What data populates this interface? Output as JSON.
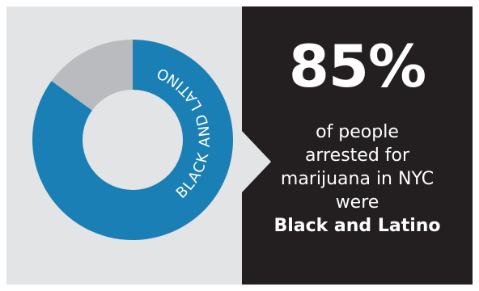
{
  "chart_data": {
    "type": "pie",
    "style": "donut",
    "slices": [
      {
        "label": "BLACK AND LATINO",
        "value": 85,
        "color": "#1a7fb5"
      },
      {
        "label": "",
        "value": 15,
        "color": "#b9bbbe"
      }
    ],
    "slice_label": "BLACK AND LATINO"
  },
  "headline": {
    "percent": "85%",
    "line1": "of people",
    "line2": "arrested for",
    "line3": "marijuana in NYC",
    "line4": "were",
    "emphasis": "Black and Latino"
  },
  "colors": {
    "panel_light": "#e2e4e5",
    "panel_dark": "#231f20",
    "primary": "#1a7fb5",
    "secondary": "#b9bbbe",
    "text": "#ffffff"
  }
}
